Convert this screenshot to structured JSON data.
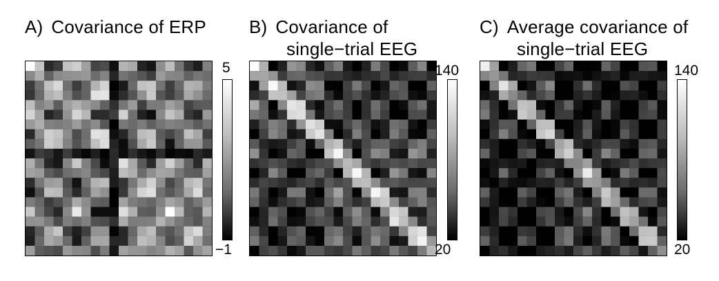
{
  "panels": [
    {
      "letter": "A)",
      "title_lines": [
        "Covariance of ERP",
        ""
      ],
      "colorbar": {
        "max": "5",
        "min": "−1"
      },
      "pattern": "erp"
    },
    {
      "letter": "B)",
      "title_lines": [
        "Covariance of",
        "single−trial EEG"
      ],
      "colorbar": {
        "max": "140",
        "min": "20"
      },
      "pattern": "eeg"
    },
    {
      "letter": "C)",
      "title_lines": [
        "Average covariance of",
        "single−trial EEG"
      ],
      "colorbar": {
        "max": "140",
        "min": "20"
      },
      "pattern": "avg"
    }
  ],
  "colormap": "grayscale"
}
